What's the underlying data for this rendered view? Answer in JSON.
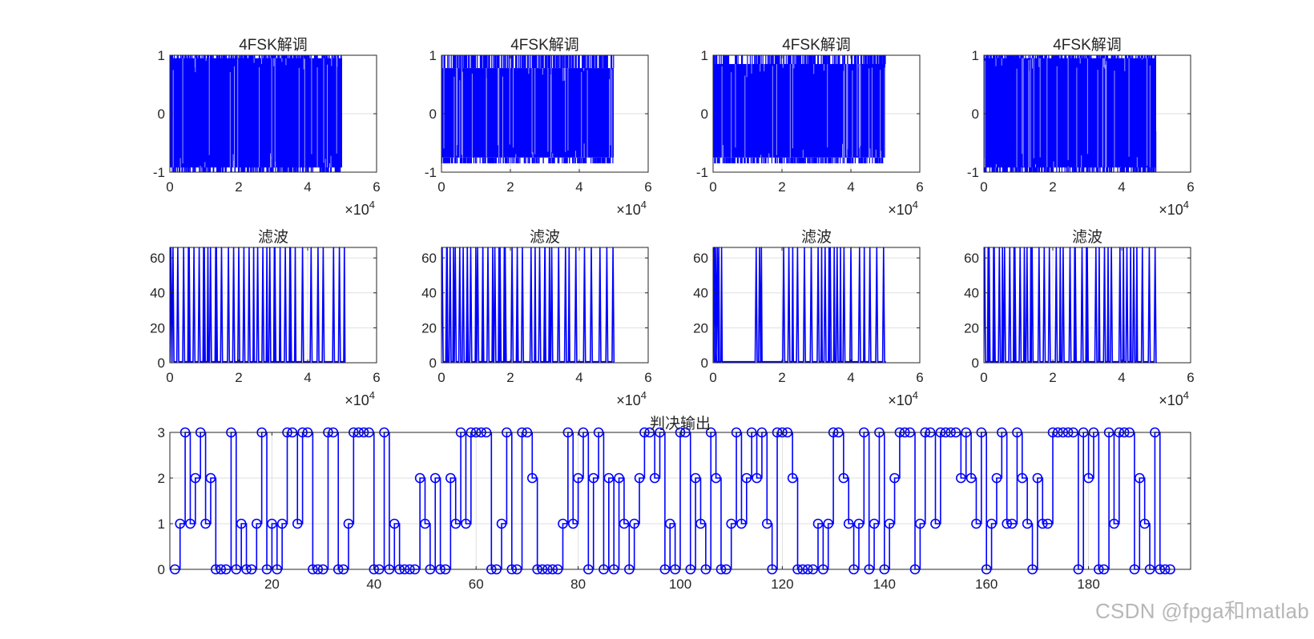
{
  "watermark": "CSDN @fpga和matlab",
  "colors": {
    "series": "#0000ff",
    "axis": "#262626",
    "grid": "#dfdfdf"
  },
  "chart_data": [
    {
      "type": "line",
      "title": "4FSK解调",
      "xlim": [
        0,
        60000
      ],
      "ylim": [
        -1,
        1
      ],
      "xticks": [
        "0",
        "2",
        "4",
        "6"
      ],
      "yticks": [
        "-1",
        "0",
        "1"
      ],
      "x_exponent": "×10^4",
      "x_exponent_base": "×10",
      "x_exponent_power": "4",
      "signal": {
        "x_end": 50000,
        "style": "binary",
        "band": [
          -0.92,
          0.95
        ]
      }
    },
    {
      "type": "line",
      "title": "4FSK解调",
      "xlim": [
        0,
        60000
      ],
      "ylim": [
        -1,
        1
      ],
      "xticks": [
        "0",
        "2",
        "4",
        "6"
      ],
      "yticks": [
        "-1",
        "0",
        "1"
      ],
      "x_exponent_base": "×10",
      "x_exponent_power": "4",
      "signal": {
        "x_end": 50000,
        "style": "dense",
        "band": [
          -0.75,
          0.78
        ]
      }
    },
    {
      "type": "line",
      "title": "4FSK解调",
      "xlim": [
        0,
        60000
      ],
      "ylim": [
        -1,
        1
      ],
      "xticks": [
        "0",
        "2",
        "4",
        "6"
      ],
      "yticks": [
        "-1",
        "0",
        "1"
      ],
      "x_exponent_base": "×10",
      "x_exponent_power": "4",
      "signal": {
        "x_end": 50000,
        "style": "dense",
        "band": [
          -0.75,
          0.85
        ]
      }
    },
    {
      "type": "line",
      "title": "4FSK解调",
      "xlim": [
        0,
        60000
      ],
      "ylim": [
        -1,
        1
      ],
      "xticks": [
        "0",
        "2",
        "4",
        "6"
      ],
      "yticks": [
        "-1",
        "0",
        "1"
      ],
      "x_exponent_base": "×10",
      "x_exponent_power": "4",
      "signal": {
        "x_end": 50000,
        "style": "binary",
        "band": [
          -0.92,
          0.95
        ]
      }
    },
    {
      "type": "line",
      "title": "滤波",
      "xlim": [
        0,
        60000
      ],
      "ylim": [
        0,
        66
      ],
      "xticks": [
        "0",
        "2",
        "4",
        "6"
      ],
      "yticks": [
        "0",
        "20",
        "40",
        "60"
      ],
      "x_exponent_base": "×10",
      "x_exponent_power": "4",
      "pulses": {
        "x_end": 50000,
        "level": 66,
        "x": [
          300,
          900,
          2300,
          4000,
          5600,
          7000,
          8500,
          10000,
          11800,
          13500,
          15000,
          17000,
          18500,
          20000,
          21500,
          23000,
          25500,
          27000,
          29000,
          30500,
          33500,
          35000,
          38500,
          41000,
          43000,
          44500,
          47500,
          49200
        ]
      }
    },
    {
      "type": "line",
      "title": "滤波",
      "xlim": [
        0,
        60000
      ],
      "ylim": [
        0,
        66
      ],
      "xticks": [
        "0",
        "2",
        "4",
        "6"
      ],
      "yticks": [
        "0",
        "20",
        "40",
        "60"
      ],
      "x_exponent_base": "×10",
      "x_exponent_power": "4",
      "pulses": {
        "x_end": 50000,
        "level": 66,
        "x": [
          200,
          1500,
          2500,
          4000,
          5300,
          6300,
          7500,
          8500,
          10500,
          12000,
          13500,
          15500,
          17000,
          18500,
          20500,
          22000,
          23500,
          26000,
          28500,
          30000,
          32000,
          34000,
          36000,
          39000,
          41500,
          43500,
          46000,
          48000,
          49800
        ]
      }
    },
    {
      "type": "line",
      "title": "滤波",
      "xlim": [
        0,
        60000
      ],
      "ylim": [
        0,
        66
      ],
      "xticks": [
        "0",
        "2",
        "4",
        "6"
      ],
      "yticks": [
        "0",
        "20",
        "40",
        "60"
      ],
      "x_exponent_base": "×10",
      "x_exponent_power": "4",
      "pulses": {
        "x_end": 50000,
        "level": 66,
        "x": [
          300,
          700,
          1200,
          12500,
          13500,
          20500,
          22000,
          24500,
          26500,
          28500,
          30500,
          32500,
          34000,
          36000,
          38000,
          40000,
          42500,
          45500,
          47500,
          49500
        ]
      }
    },
    {
      "type": "line",
      "title": "滤波",
      "xlim": [
        0,
        60000
      ],
      "ylim": [
        0,
        66
      ],
      "xticks": [
        "0",
        "2",
        "4",
        "6"
      ],
      "yticks": [
        "0",
        "20",
        "40",
        "60"
      ],
      "x_exponent_base": "×10",
      "x_exponent_power": "4",
      "pulses": {
        "x_end": 50000,
        "level": 66,
        "x": [
          200,
          1500,
          3000,
          4500,
          6000,
          7500,
          9000,
          10500,
          12500,
          14000,
          16000,
          17500,
          19000,
          21000,
          23000,
          25000,
          26500,
          28500,
          30000,
          32500,
          35000,
          37000,
          39500,
          41500,
          43500,
          46000,
          48000,
          49700
        ]
      }
    },
    {
      "type": "stairs",
      "title": "判决输出",
      "marker": "circle",
      "xlim": [
        0,
        200
      ],
      "ylim": [
        0,
        3
      ],
      "xticks": [
        "20",
        "40",
        "60",
        "80",
        "100",
        "120",
        "140",
        "160",
        "180"
      ],
      "xtick_values": [
        20,
        40,
        60,
        80,
        100,
        120,
        140,
        160,
        180
      ],
      "yticks": [
        "0",
        "1",
        "2",
        "3"
      ],
      "values": [
        0,
        1,
        3,
        1,
        2,
        3,
        1,
        2,
        0,
        0,
        0,
        3,
        0,
        1,
        0,
        0,
        1,
        3,
        0,
        1,
        0,
        1,
        3,
        3,
        1,
        3,
        3,
        0,
        0,
        0,
        3,
        3,
        0,
        0,
        1,
        3,
        3,
        3,
        3,
        0,
        0,
        3,
        0,
        1,
        0,
        0,
        0,
        0,
        2,
        1,
        0,
        2,
        0,
        0,
        2,
        1,
        3,
        1,
        3,
        3,
        3,
        3,
        0,
        0,
        1,
        3,
        0,
        0,
        3,
        3,
        2,
        0,
        0,
        0,
        0,
        0,
        1,
        3,
        1,
        2,
        3,
        0,
        2,
        3,
        0,
        2,
        0,
        2,
        1,
        0,
        1,
        2,
        3,
        3,
        2,
        3,
        0,
        1,
        0,
        3,
        3,
        0,
        2,
        1,
        0,
        3,
        2,
        0,
        0,
        1,
        3,
        1,
        2,
        3,
        2,
        3,
        1,
        0,
        3,
        3,
        3,
        2,
        0,
        0,
        0,
        0,
        1,
        0,
        1,
        3,
        3,
        2,
        1,
        0,
        1,
        3,
        0,
        1,
        3,
        0,
        1,
        2,
        3,
        3,
        3,
        0,
        1,
        3,
        3,
        1,
        3,
        3,
        3,
        3,
        2,
        3,
        2,
        1,
        3,
        0,
        1,
        2,
        3,
        1,
        1,
        3,
        2,
        1,
        0,
        2,
        1,
        1,
        3,
        3,
        3,
        3,
        3,
        0,
        3,
        2,
        3,
        0,
        0,
        3,
        1,
        3,
        3,
        3,
        0,
        2,
        1,
        0,
        3,
        0,
        0,
        0
      ]
    }
  ]
}
